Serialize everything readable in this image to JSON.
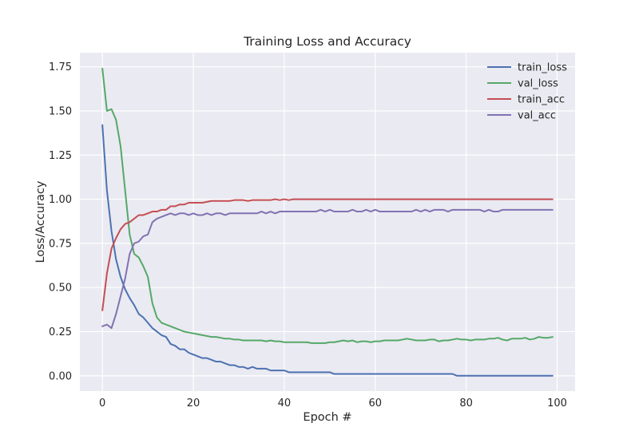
{
  "chart_data": {
    "type": "line",
    "title": "Training Loss and Accuracy",
    "xlabel": "Epoch #",
    "ylabel": "Loss/Accuracy",
    "xlim": [
      -4.95,
      103.95
    ],
    "ylim": [
      -0.087,
      1.83
    ],
    "x_ticks": [
      0,
      20,
      40,
      60,
      80,
      100
    ],
    "y_ticks": [
      0.0,
      0.25,
      0.5,
      0.75,
      1.0,
      1.25,
      1.5,
      1.75
    ],
    "x_tick_labels": [
      "0",
      "20",
      "40",
      "60",
      "80",
      "100"
    ],
    "y_tick_labels": [
      "0.00",
      "0.25",
      "0.50",
      "0.75",
      "1.00",
      "1.25",
      "1.50",
      "1.75"
    ],
    "grid": true,
    "legend_position": "top-right",
    "series": [
      {
        "name": "train_loss",
        "color": "#4c72b0",
        "x": [
          0,
          1,
          2,
          3,
          4,
          5,
          6,
          7,
          8,
          9,
          10,
          11,
          12,
          13,
          14,
          15,
          16,
          17,
          18,
          19,
          20,
          21,
          22,
          23,
          24,
          25,
          26,
          27,
          28,
          29,
          30,
          31,
          32,
          33,
          34,
          35,
          36,
          37,
          38,
          39,
          40,
          41,
          42,
          43,
          44,
          45,
          46,
          47,
          48,
          49,
          50,
          51,
          52,
          53,
          54,
          55,
          56,
          57,
          58,
          59,
          60,
          61,
          62,
          63,
          64,
          65,
          66,
          67,
          68,
          69,
          70,
          71,
          72,
          73,
          74,
          75,
          76,
          77,
          78,
          79,
          80,
          81,
          82,
          83,
          84,
          85,
          86,
          87,
          88,
          89,
          90,
          91,
          92,
          93,
          94,
          95,
          96,
          97,
          98,
          99
        ],
        "y": [
          1.42,
          1.05,
          0.82,
          0.66,
          0.56,
          0.49,
          0.44,
          0.4,
          0.35,
          0.33,
          0.3,
          0.27,
          0.25,
          0.23,
          0.22,
          0.18,
          0.17,
          0.15,
          0.15,
          0.13,
          0.12,
          0.11,
          0.1,
          0.1,
          0.09,
          0.08,
          0.08,
          0.07,
          0.06,
          0.06,
          0.05,
          0.05,
          0.04,
          0.05,
          0.04,
          0.04,
          0.04,
          0.03,
          0.03,
          0.03,
          0.03,
          0.02,
          0.02,
          0.02,
          0.02,
          0.02,
          0.02,
          0.02,
          0.02,
          0.02,
          0.02,
          0.01,
          0.01,
          0.01,
          0.01,
          0.01,
          0.01,
          0.01,
          0.01,
          0.01,
          0.01,
          0.01,
          0.01,
          0.01,
          0.01,
          0.01,
          0.01,
          0.01,
          0.01,
          0.01,
          0.01,
          0.01,
          0.01,
          0.01,
          0.01,
          0.01,
          0.01,
          0.01,
          0.0,
          0.0,
          0.0,
          0.0,
          0.0,
          0.0,
          0.0,
          0.0,
          0.0,
          0.0,
          0.0,
          0.0,
          0.0,
          0.0,
          0.0,
          0.0,
          0.0,
          0.0,
          0.0,
          0.0,
          0.0,
          0.0
        ]
      },
      {
        "name": "val_loss",
        "color": "#55a868",
        "x": [
          0,
          1,
          2,
          3,
          4,
          5,
          6,
          7,
          8,
          9,
          10,
          11,
          12,
          13,
          14,
          15,
          16,
          17,
          18,
          19,
          20,
          21,
          22,
          23,
          24,
          25,
          26,
          27,
          28,
          29,
          30,
          31,
          32,
          33,
          34,
          35,
          36,
          37,
          38,
          39,
          40,
          41,
          42,
          43,
          44,
          45,
          46,
          47,
          48,
          49,
          50,
          51,
          52,
          53,
          54,
          55,
          56,
          57,
          58,
          59,
          60,
          61,
          62,
          63,
          64,
          65,
          66,
          67,
          68,
          69,
          70,
          71,
          72,
          73,
          74,
          75,
          76,
          77,
          78,
          79,
          80,
          81,
          82,
          83,
          84,
          85,
          86,
          87,
          88,
          89,
          90,
          91,
          92,
          93,
          94,
          95,
          96,
          97,
          98,
          99
        ],
        "y": [
          1.74,
          1.5,
          1.51,
          1.45,
          1.3,
          1.05,
          0.8,
          0.69,
          0.67,
          0.62,
          0.56,
          0.41,
          0.33,
          0.3,
          0.29,
          0.28,
          0.27,
          0.26,
          0.25,
          0.245,
          0.24,
          0.235,
          0.23,
          0.225,
          0.22,
          0.22,
          0.215,
          0.21,
          0.21,
          0.205,
          0.205,
          0.2,
          0.2,
          0.2,
          0.2,
          0.2,
          0.195,
          0.2,
          0.195,
          0.195,
          0.19,
          0.19,
          0.19,
          0.19,
          0.19,
          0.19,
          0.185,
          0.185,
          0.185,
          0.185,
          0.19,
          0.19,
          0.195,
          0.2,
          0.195,
          0.2,
          0.19,
          0.195,
          0.195,
          0.19,
          0.195,
          0.195,
          0.2,
          0.2,
          0.2,
          0.2,
          0.205,
          0.21,
          0.205,
          0.2,
          0.2,
          0.2,
          0.205,
          0.205,
          0.195,
          0.2,
          0.2,
          0.205,
          0.21,
          0.205,
          0.205,
          0.2,
          0.205,
          0.205,
          0.205,
          0.21,
          0.21,
          0.215,
          0.205,
          0.2,
          0.21,
          0.21,
          0.21,
          0.215,
          0.205,
          0.21,
          0.22,
          0.215,
          0.215,
          0.22
        ]
      },
      {
        "name": "train_acc",
        "color": "#c44e52",
        "x": [
          0,
          1,
          2,
          3,
          4,
          5,
          6,
          7,
          8,
          9,
          10,
          11,
          12,
          13,
          14,
          15,
          16,
          17,
          18,
          19,
          20,
          21,
          22,
          23,
          24,
          25,
          26,
          27,
          28,
          29,
          30,
          31,
          32,
          33,
          34,
          35,
          36,
          37,
          38,
          39,
          40,
          41,
          42,
          43,
          44,
          45,
          46,
          47,
          48,
          49,
          50,
          51,
          52,
          53,
          54,
          55,
          56,
          57,
          58,
          59,
          60,
          61,
          62,
          63,
          64,
          65,
          66,
          67,
          68,
          69,
          70,
          71,
          72,
          73,
          74,
          75,
          76,
          77,
          78,
          79,
          80,
          81,
          82,
          83,
          84,
          85,
          86,
          87,
          88,
          89,
          90,
          91,
          92,
          93,
          94,
          95,
          96,
          97,
          98,
          99
        ],
        "y": [
          0.37,
          0.58,
          0.72,
          0.78,
          0.83,
          0.86,
          0.87,
          0.89,
          0.91,
          0.91,
          0.92,
          0.93,
          0.93,
          0.94,
          0.94,
          0.96,
          0.96,
          0.97,
          0.97,
          0.98,
          0.98,
          0.98,
          0.98,
          0.985,
          0.99,
          0.99,
          0.99,
          0.99,
          0.99,
          0.995,
          0.995,
          0.995,
          0.99,
          0.995,
          0.995,
          0.995,
          0.995,
          0.995,
          1.0,
          0.995,
          1.0,
          0.995,
          1.0,
          1.0,
          1.0,
          1.0,
          1.0,
          1.0,
          1.0,
          1.0,
          1.0,
          1.0,
          1.0,
          1.0,
          1.0,
          1.0,
          1.0,
          1.0,
          1.0,
          1.0,
          1.0,
          1.0,
          1.0,
          1.0,
          1.0,
          1.0,
          1.0,
          1.0,
          1.0,
          1.0,
          1.0,
          1.0,
          1.0,
          1.0,
          1.0,
          1.0,
          1.0,
          1.0,
          1.0,
          1.0,
          1.0,
          1.0,
          1.0,
          1.0,
          1.0,
          1.0,
          1.0,
          1.0,
          1.0,
          1.0,
          1.0,
          1.0,
          1.0,
          1.0,
          1.0,
          1.0,
          1.0,
          1.0,
          1.0,
          1.0
        ]
      },
      {
        "name": "val_acc",
        "color": "#8172b2",
        "x": [
          0,
          1,
          2,
          3,
          4,
          5,
          6,
          7,
          8,
          9,
          10,
          11,
          12,
          13,
          14,
          15,
          16,
          17,
          18,
          19,
          20,
          21,
          22,
          23,
          24,
          25,
          26,
          27,
          28,
          29,
          30,
          31,
          32,
          33,
          34,
          35,
          36,
          37,
          38,
          39,
          40,
          41,
          42,
          43,
          44,
          45,
          46,
          47,
          48,
          49,
          50,
          51,
          52,
          53,
          54,
          55,
          56,
          57,
          58,
          59,
          60,
          61,
          62,
          63,
          64,
          65,
          66,
          67,
          68,
          69,
          70,
          71,
          72,
          73,
          74,
          75,
          76,
          77,
          78,
          79,
          80,
          81,
          82,
          83,
          84,
          85,
          86,
          87,
          88,
          89,
          90,
          91,
          92,
          93,
          94,
          95,
          96,
          97,
          98,
          99
        ],
        "y": [
          0.28,
          0.29,
          0.27,
          0.35,
          0.45,
          0.55,
          0.69,
          0.75,
          0.76,
          0.79,
          0.8,
          0.87,
          0.89,
          0.9,
          0.91,
          0.92,
          0.91,
          0.92,
          0.92,
          0.91,
          0.92,
          0.91,
          0.91,
          0.92,
          0.91,
          0.92,
          0.92,
          0.91,
          0.92,
          0.92,
          0.92,
          0.92,
          0.92,
          0.92,
          0.92,
          0.93,
          0.92,
          0.93,
          0.92,
          0.93,
          0.93,
          0.93,
          0.93,
          0.93,
          0.93,
          0.93,
          0.93,
          0.93,
          0.94,
          0.93,
          0.94,
          0.93,
          0.93,
          0.93,
          0.93,
          0.94,
          0.93,
          0.93,
          0.94,
          0.93,
          0.94,
          0.93,
          0.93,
          0.93,
          0.93,
          0.93,
          0.93,
          0.93,
          0.93,
          0.94,
          0.93,
          0.94,
          0.93,
          0.94,
          0.94,
          0.94,
          0.93,
          0.94,
          0.94,
          0.94,
          0.94,
          0.94,
          0.94,
          0.94,
          0.93,
          0.94,
          0.93,
          0.93,
          0.94,
          0.94,
          0.94,
          0.94,
          0.94,
          0.94,
          0.94,
          0.94,
          0.94,
          0.94,
          0.94,
          0.94
        ]
      }
    ]
  }
}
